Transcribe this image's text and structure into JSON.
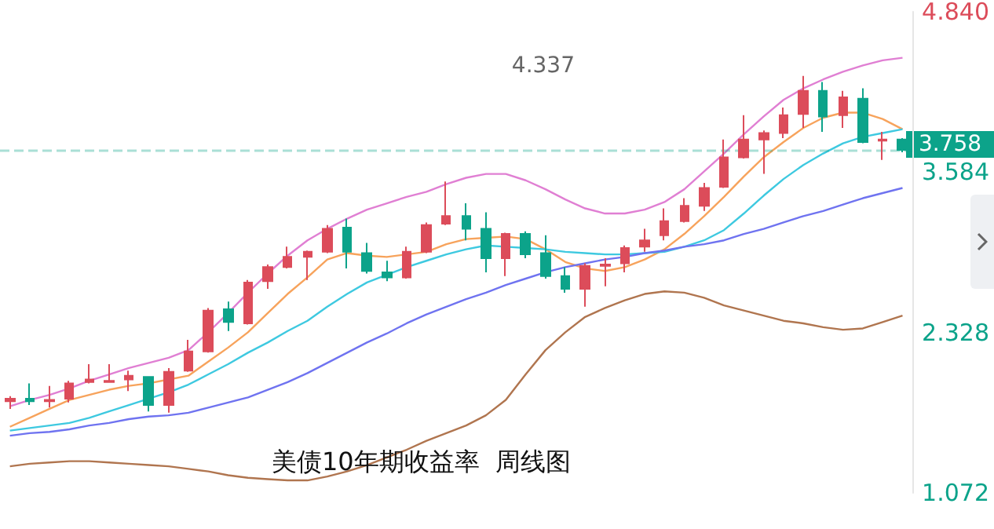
{
  "chart_data": {
    "type": "candlestick",
    "title": "美债10年期收益率  周线图",
    "categories": [
      null,
      null,
      null,
      null,
      null,
      null,
      null,
      null,
      null,
      null,
      null,
      null,
      null,
      null,
      null,
      null,
      null,
      null,
      null,
      null,
      null,
      null,
      null,
      null,
      null,
      null,
      null,
      null,
      null,
      null,
      null,
      null,
      null,
      null,
      null,
      null,
      null,
      null,
      null,
      null,
      null,
      null,
      null,
      null,
      null,
      null
    ],
    "ohlc": [
      [
        1.79,
        1.83,
        1.73,
        1.81
      ],
      [
        1.81,
        1.93,
        1.76,
        1.79
      ],
      [
        1.79,
        1.91,
        1.74,
        1.8
      ],
      [
        1.81,
        1.95,
        1.78,
        1.93
      ],
      [
        1.94,
        2.08,
        1.93,
        1.96
      ],
      [
        1.94,
        2.08,
        1.94,
        1.95
      ],
      [
        1.96,
        2.03,
        1.87,
        1.99
      ],
      [
        1.98,
        1.98,
        1.71,
        1.76
      ],
      [
        1.76,
        2.05,
        1.7,
        2.02
      ],
      [
        2.03,
        2.27,
        2.02,
        2.18
      ],
      [
        2.18,
        2.52,
        2.17,
        2.5
      ],
      [
        2.51,
        2.57,
        2.34,
        2.41
      ],
      [
        2.4,
        2.74,
        2.39,
        2.72
      ],
      [
        2.73,
        2.86,
        2.67,
        2.84
      ],
      [
        2.84,
        3.0,
        2.83,
        2.92
      ],
      [
        2.92,
        2.97,
        2.74,
        2.96
      ],
      [
        2.96,
        3.17,
        2.95,
        3.14
      ],
      [
        3.15,
        3.22,
        2.83,
        2.96
      ],
      [
        2.95,
        3.03,
        2.79,
        2.81
      ],
      [
        2.8,
        2.89,
        2.73,
        2.76
      ],
      [
        2.76,
        3.0,
        2.75,
        2.96
      ],
      [
        2.96,
        3.19,
        2.95,
        3.17
      ],
      [
        3.18,
        3.51,
        3.17,
        3.24
      ],
      [
        3.24,
        3.34,
        3.05,
        3.14
      ],
      [
        3.14,
        3.27,
        2.8,
        2.91
      ],
      [
        2.91,
        3.11,
        2.77,
        3.1
      ],
      [
        3.1,
        3.12,
        2.91,
        2.94
      ],
      [
        2.95,
        3.09,
        2.75,
        2.77
      ],
      [
        2.77,
        2.84,
        2.64,
        2.67
      ],
      [
        2.67,
        2.87,
        2.53,
        2.85
      ],
      [
        2.85,
        2.91,
        2.69,
        2.86
      ],
      [
        2.87,
        3.01,
        2.8,
        2.99
      ],
      [
        3.0,
        3.14,
        2.96,
        3.05
      ],
      [
        3.09,
        3.3,
        3.05,
        3.2
      ],
      [
        3.2,
        3.38,
        3.19,
        3.32
      ],
      [
        3.32,
        3.5,
        3.28,
        3.46
      ],
      [
        3.47,
        3.84,
        3.46,
        3.7
      ],
      [
        3.7,
        4.03,
        3.69,
        3.84
      ],
      [
        3.84,
        3.91,
        3.57,
        3.89
      ],
      [
        3.89,
        4.09,
        3.85,
        4.03
      ],
      [
        4.04,
        4.337,
        3.93,
        4.22
      ],
      [
        4.22,
        4.29,
        3.9,
        4.02
      ],
      [
        4.03,
        4.22,
        3.93,
        4.17
      ],
      [
        4.16,
        4.24,
        3.81,
        3.82
      ],
      [
        3.83,
        3.9,
        3.68,
        3.84
      ],
      [
        3.84,
        3.85,
        3.74,
        3.758
      ]
    ],
    "colors": [
      "#dc4c5a",
      "#0ca38a",
      "#dc4c5a",
      "#dc4c5a",
      "#dc4c5a",
      "#dc4c5a",
      "#dc4c5a",
      "#0ca38a",
      "#dc4c5a",
      "#dc4c5a",
      "#dc4c5a",
      "#0ca38a",
      "#dc4c5a",
      "#dc4c5a",
      "#dc4c5a",
      "#dc4c5a",
      "#dc4c5a",
      "#0ca38a",
      "#0ca38a",
      "#0ca38a",
      "#dc4c5a",
      "#dc4c5a",
      "#dc4c5a",
      "#0ca38a",
      "#0ca38a",
      "#dc4c5a",
      "#0ca38a",
      "#0ca38a",
      "#0ca38a",
      "#dc4c5a",
      "#dc4c5a",
      "#dc4c5a",
      "#dc4c5a",
      "#dc4c5a",
      "#dc4c5a",
      "#dc4c5a",
      "#dc4c5a",
      "#dc4c5a",
      "#dc4c5a",
      "#dc4c5a",
      "#dc4c5a",
      "#0ca38a",
      "#dc4c5a",
      "#0ca38a",
      "#dc4c5a",
      "#0ca38a"
    ],
    "series": [
      {
        "type": "line",
        "color": "#e07fd3",
        "values": [
          1.75,
          1.8,
          1.84,
          1.89,
          1.95,
          2.0,
          2.05,
          2.09,
          2.13,
          2.19,
          2.33,
          2.48,
          2.64,
          2.79,
          2.93,
          3.05,
          3.14,
          3.22,
          3.29,
          3.34,
          3.39,
          3.43,
          3.49,
          3.54,
          3.57,
          3.57,
          3.52,
          3.45,
          3.37,
          3.3,
          3.26,
          3.26,
          3.29,
          3.35,
          3.45,
          3.59,
          3.73,
          3.88,
          4.02,
          4.15,
          4.24,
          4.31,
          4.37,
          4.42,
          4.46,
          4.48
        ]
      },
      {
        "type": "line",
        "color": "#f7a35c",
        "values": [
          1.59,
          1.66,
          1.73,
          1.8,
          1.84,
          1.88,
          1.91,
          1.93,
          1.96,
          1.99,
          2.1,
          2.21,
          2.33,
          2.48,
          2.63,
          2.76,
          2.9,
          2.95,
          2.93,
          2.92,
          2.94,
          2.96,
          3.02,
          3.06,
          3.07,
          3.08,
          3.06,
          2.98,
          2.88,
          2.83,
          2.81,
          2.84,
          2.9,
          2.98,
          3.1,
          3.24,
          3.39,
          3.55,
          3.7,
          3.82,
          3.93,
          4.01,
          4.05,
          4.05,
          4.0,
          3.92
        ]
      },
      {
        "type": "line",
        "color": "#3ec9e0",
        "values": [
          1.56,
          1.58,
          1.6,
          1.62,
          1.66,
          1.71,
          1.76,
          1.81,
          1.86,
          1.92,
          2.0,
          2.08,
          2.17,
          2.25,
          2.34,
          2.42,
          2.53,
          2.63,
          2.72,
          2.78,
          2.84,
          2.89,
          2.94,
          2.98,
          3.01,
          3.0,
          2.99,
          2.98,
          2.96,
          2.95,
          2.94,
          2.94,
          2.95,
          2.96,
          3.0,
          3.05,
          3.13,
          3.26,
          3.4,
          3.53,
          3.64,
          3.73,
          3.81,
          3.86,
          3.89,
          3.92
        ]
      },
      {
        "type": "line",
        "color": "#6f73f0",
        "values": [
          1.52,
          1.54,
          1.55,
          1.57,
          1.6,
          1.62,
          1.65,
          1.67,
          1.68,
          1.7,
          1.74,
          1.78,
          1.82,
          1.88,
          1.94,
          2.01,
          2.09,
          2.17,
          2.25,
          2.32,
          2.4,
          2.47,
          2.53,
          2.59,
          2.64,
          2.7,
          2.75,
          2.8,
          2.84,
          2.87,
          2.9,
          2.92,
          2.95,
          2.97,
          3.0,
          3.02,
          3.05,
          3.1,
          3.14,
          3.19,
          3.24,
          3.28,
          3.33,
          3.38,
          3.42,
          3.46
        ]
      },
      {
        "type": "line",
        "color": "#b0754f",
        "values": [
          1.28,
          1.3,
          1.31,
          1.32,
          1.32,
          1.31,
          1.3,
          1.29,
          1.28,
          1.26,
          1.24,
          1.21,
          1.19,
          1.18,
          1.17,
          1.17,
          1.2,
          1.24,
          1.29,
          1.35,
          1.41,
          1.48,
          1.54,
          1.6,
          1.68,
          1.8,
          2.0,
          2.19,
          2.33,
          2.45,
          2.52,
          2.58,
          2.63,
          2.65,
          2.64,
          2.6,
          2.54,
          2.5,
          2.46,
          2.42,
          2.4,
          2.37,
          2.35,
          2.36,
          2.41,
          2.46
        ]
      }
    ],
    "ylim": [
      1.072,
      4.84
    ],
    "yticks": [
      {
        "value": 1.072,
        "label": "1.072"
      },
      {
        "value": 2.328,
        "label": "2.328"
      },
      {
        "value": 3.584,
        "label": "3.584"
      },
      {
        "value": 4.84,
        "label": "4.840"
      }
    ],
    "ref_lines": [
      {
        "axis": "y",
        "value": 3.758,
        "label": "3.758",
        "color": "#0ca38a",
        "line_style": "dashed"
      }
    ],
    "annotations": [
      "4.337"
    ],
    "tick_labels": "y",
    "grid": false,
    "marker": "none",
    "line_style": "solid"
  }
}
